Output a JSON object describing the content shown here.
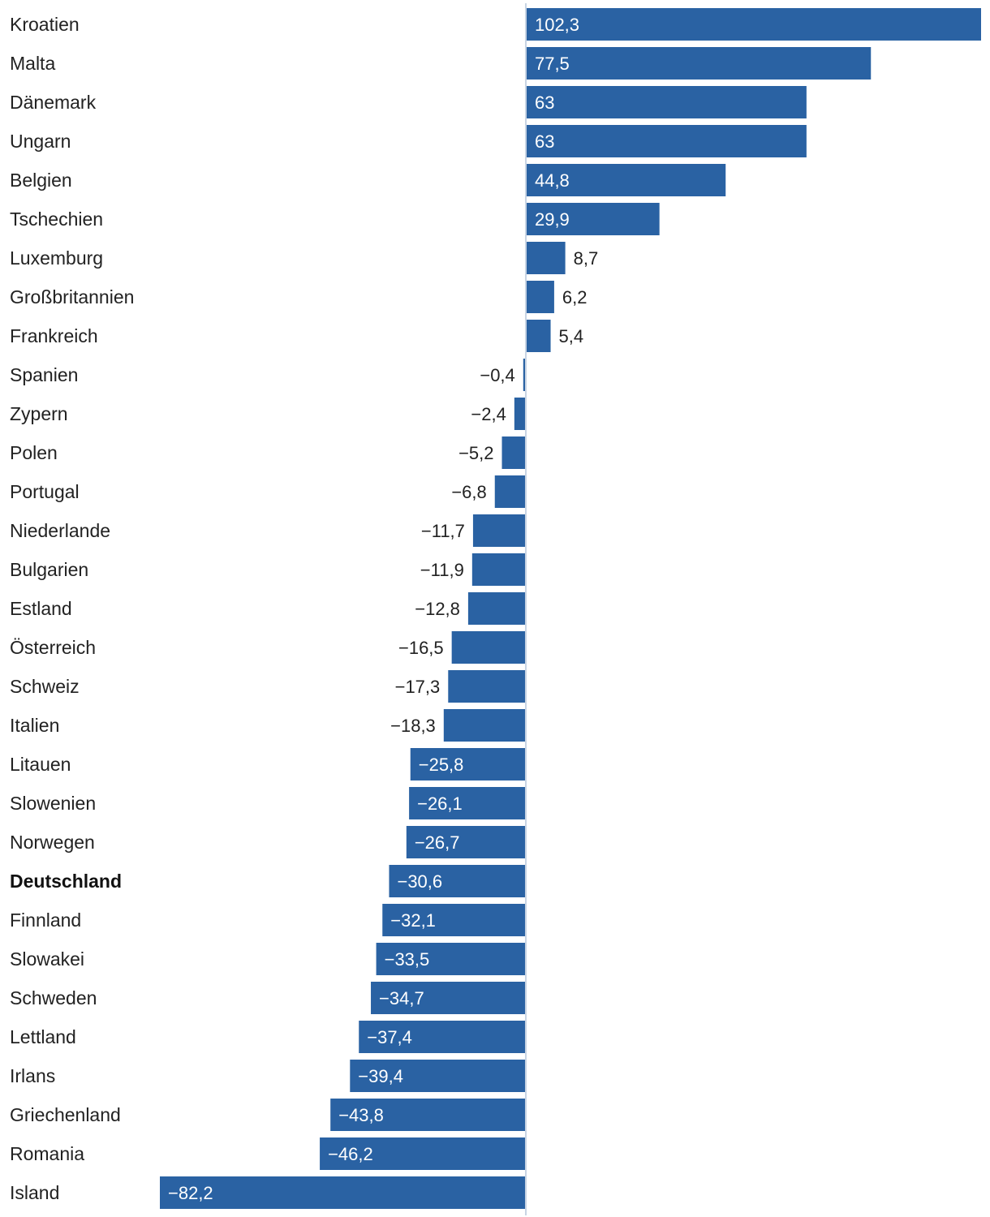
{
  "chart_data": {
    "type": "bar",
    "orientation": "horizontal",
    "categories": [
      "Kroatien",
      "Malta",
      "Dänemark",
      "Ungarn",
      "Belgien",
      "Tschechien",
      "Luxemburg",
      "Großbritannien",
      "Frankreich",
      "Spanien",
      "Zypern",
      "Polen",
      "Portugal",
      "Niederlande",
      "Bulgarien",
      "Estland",
      "Österreich",
      "Schweiz",
      "Italien",
      "Litauen",
      "Slowenien",
      "Norwegen",
      "Deutschland",
      "Finnland",
      "Slowakei",
      "Schweden",
      "Lettland",
      "Irlans",
      "Griechenland",
      "Romania",
      "Island"
    ],
    "values": [
      102.3,
      77.5,
      63,
      63,
      44.8,
      29.9,
      8.7,
      6.2,
      5.4,
      -0.4,
      -2.4,
      -5.2,
      -6.8,
      -11.7,
      -11.9,
      -12.8,
      -16.5,
      -17.3,
      -18.3,
      -25.8,
      -26.1,
      -26.7,
      -30.6,
      -32.1,
      -33.5,
      -34.7,
      -37.4,
      -39.4,
      -43.8,
      -46.2,
      -82.2
    ],
    "value_labels": [
      "102,3",
      "77,5",
      "63",
      "63",
      "44,8",
      "29,9",
      "8,7",
      "6,2",
      "5,4",
      "−0,4",
      "−2,4",
      "−5,2",
      "−6,8",
      "−11,7",
      "−11,9",
      "−12,8",
      "−16,5",
      "−17,3",
      "−18,3",
      "−25,8",
      "−26,1",
      "−26,7",
      "−30,6",
      "−32,1",
      "−33,5",
      "−34,7",
      "−37,4",
      "−39,4",
      "−43,8",
      "−46,2",
      "−82,2"
    ],
    "highlight": [
      "Deutschland"
    ],
    "xlim": [
      -82.2,
      102.3
    ],
    "title": "",
    "xlabel": "",
    "ylabel": "",
    "grid": false,
    "legend": "none",
    "colors": {
      "bar": "#2a62a3",
      "zero_line": "#c8d4e3",
      "label_inside": "#ffffff",
      "label_outside": "#222222"
    }
  }
}
